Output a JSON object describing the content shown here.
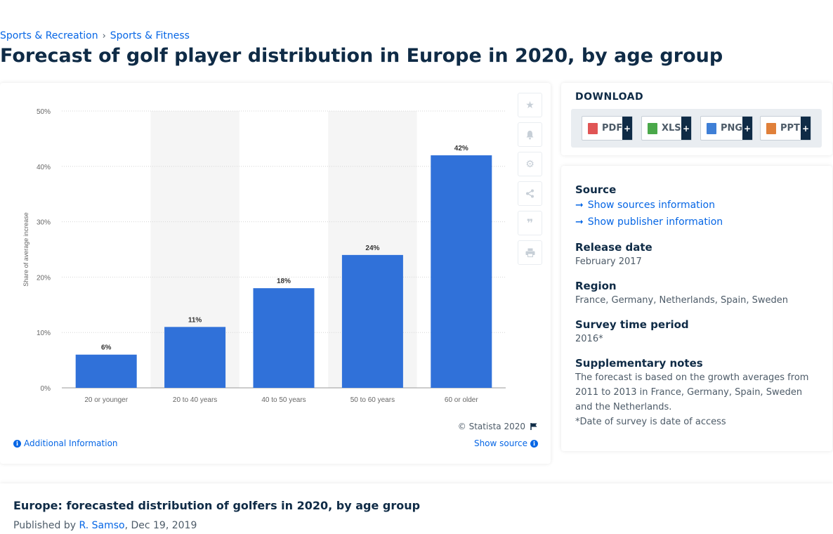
{
  "breadcrumb": [
    "Sports & Recreation",
    "Sports & Fitness"
  ],
  "page_title": "Forecast of golf player distribution in Europe in 2020, by age group",
  "chart_data": {
    "type": "bar",
    "categories": [
      "20 or younger",
      "20 to 40 years",
      "40 to 50 years",
      "50 to 60 years",
      "60 or older"
    ],
    "values": [
      6,
      11,
      18,
      24,
      42
    ],
    "value_labels": [
      "6%",
      "11%",
      "18%",
      "24%",
      "42%"
    ],
    "ylabel": "Share of average increase",
    "xlabel": "",
    "ylim": [
      0,
      50
    ],
    "yticks": [
      "0%",
      "10%",
      "20%",
      "30%",
      "40%",
      "50%"
    ],
    "grid": true,
    "bar_color": "#3071d9",
    "alt_band_color": "#f5f5f5"
  },
  "chart_footer": {
    "copyright": "© Statista 2020",
    "additional_info": "Additional Information",
    "show_source": "Show source"
  },
  "tool_icons": [
    "star-icon",
    "bell-icon",
    "gear-icon",
    "share-icon",
    "quote-icon",
    "print-icon"
  ],
  "download": {
    "title": "DOWNLOAD",
    "buttons": [
      {
        "label": "PDF",
        "color": "#e05555"
      },
      {
        "label": "XLS",
        "color": "#4aa84a"
      },
      {
        "label": "PNG",
        "color": "#3f7fd6"
      },
      {
        "label": "PPT",
        "color": "#e0803a"
      }
    ],
    "plus": "+"
  },
  "info": {
    "source_heading": "Source",
    "show_sources": "Show sources information",
    "show_publisher": "Show publisher information",
    "release_heading": "Release date",
    "release_value": "February 2017",
    "region_heading": "Region",
    "region_value": "France, Germany, Netherlands, Spain, Sweden",
    "survey_heading": "Survey time period",
    "survey_value": "2016*",
    "notes_heading": "Supplementary notes",
    "notes_value": "The forecast is based on the growth averages from 2011 to 2013 in France, Germany, Spain, Sweden and the Netherlands.",
    "notes_footnote": "*Date of survey is date of access"
  },
  "description": {
    "title": "Europe: forecasted distribution of golfers in 2020, by age group",
    "published_prefix": "Published by",
    "author": "R. Samso",
    "date": ", Dec 19, 2019"
  }
}
